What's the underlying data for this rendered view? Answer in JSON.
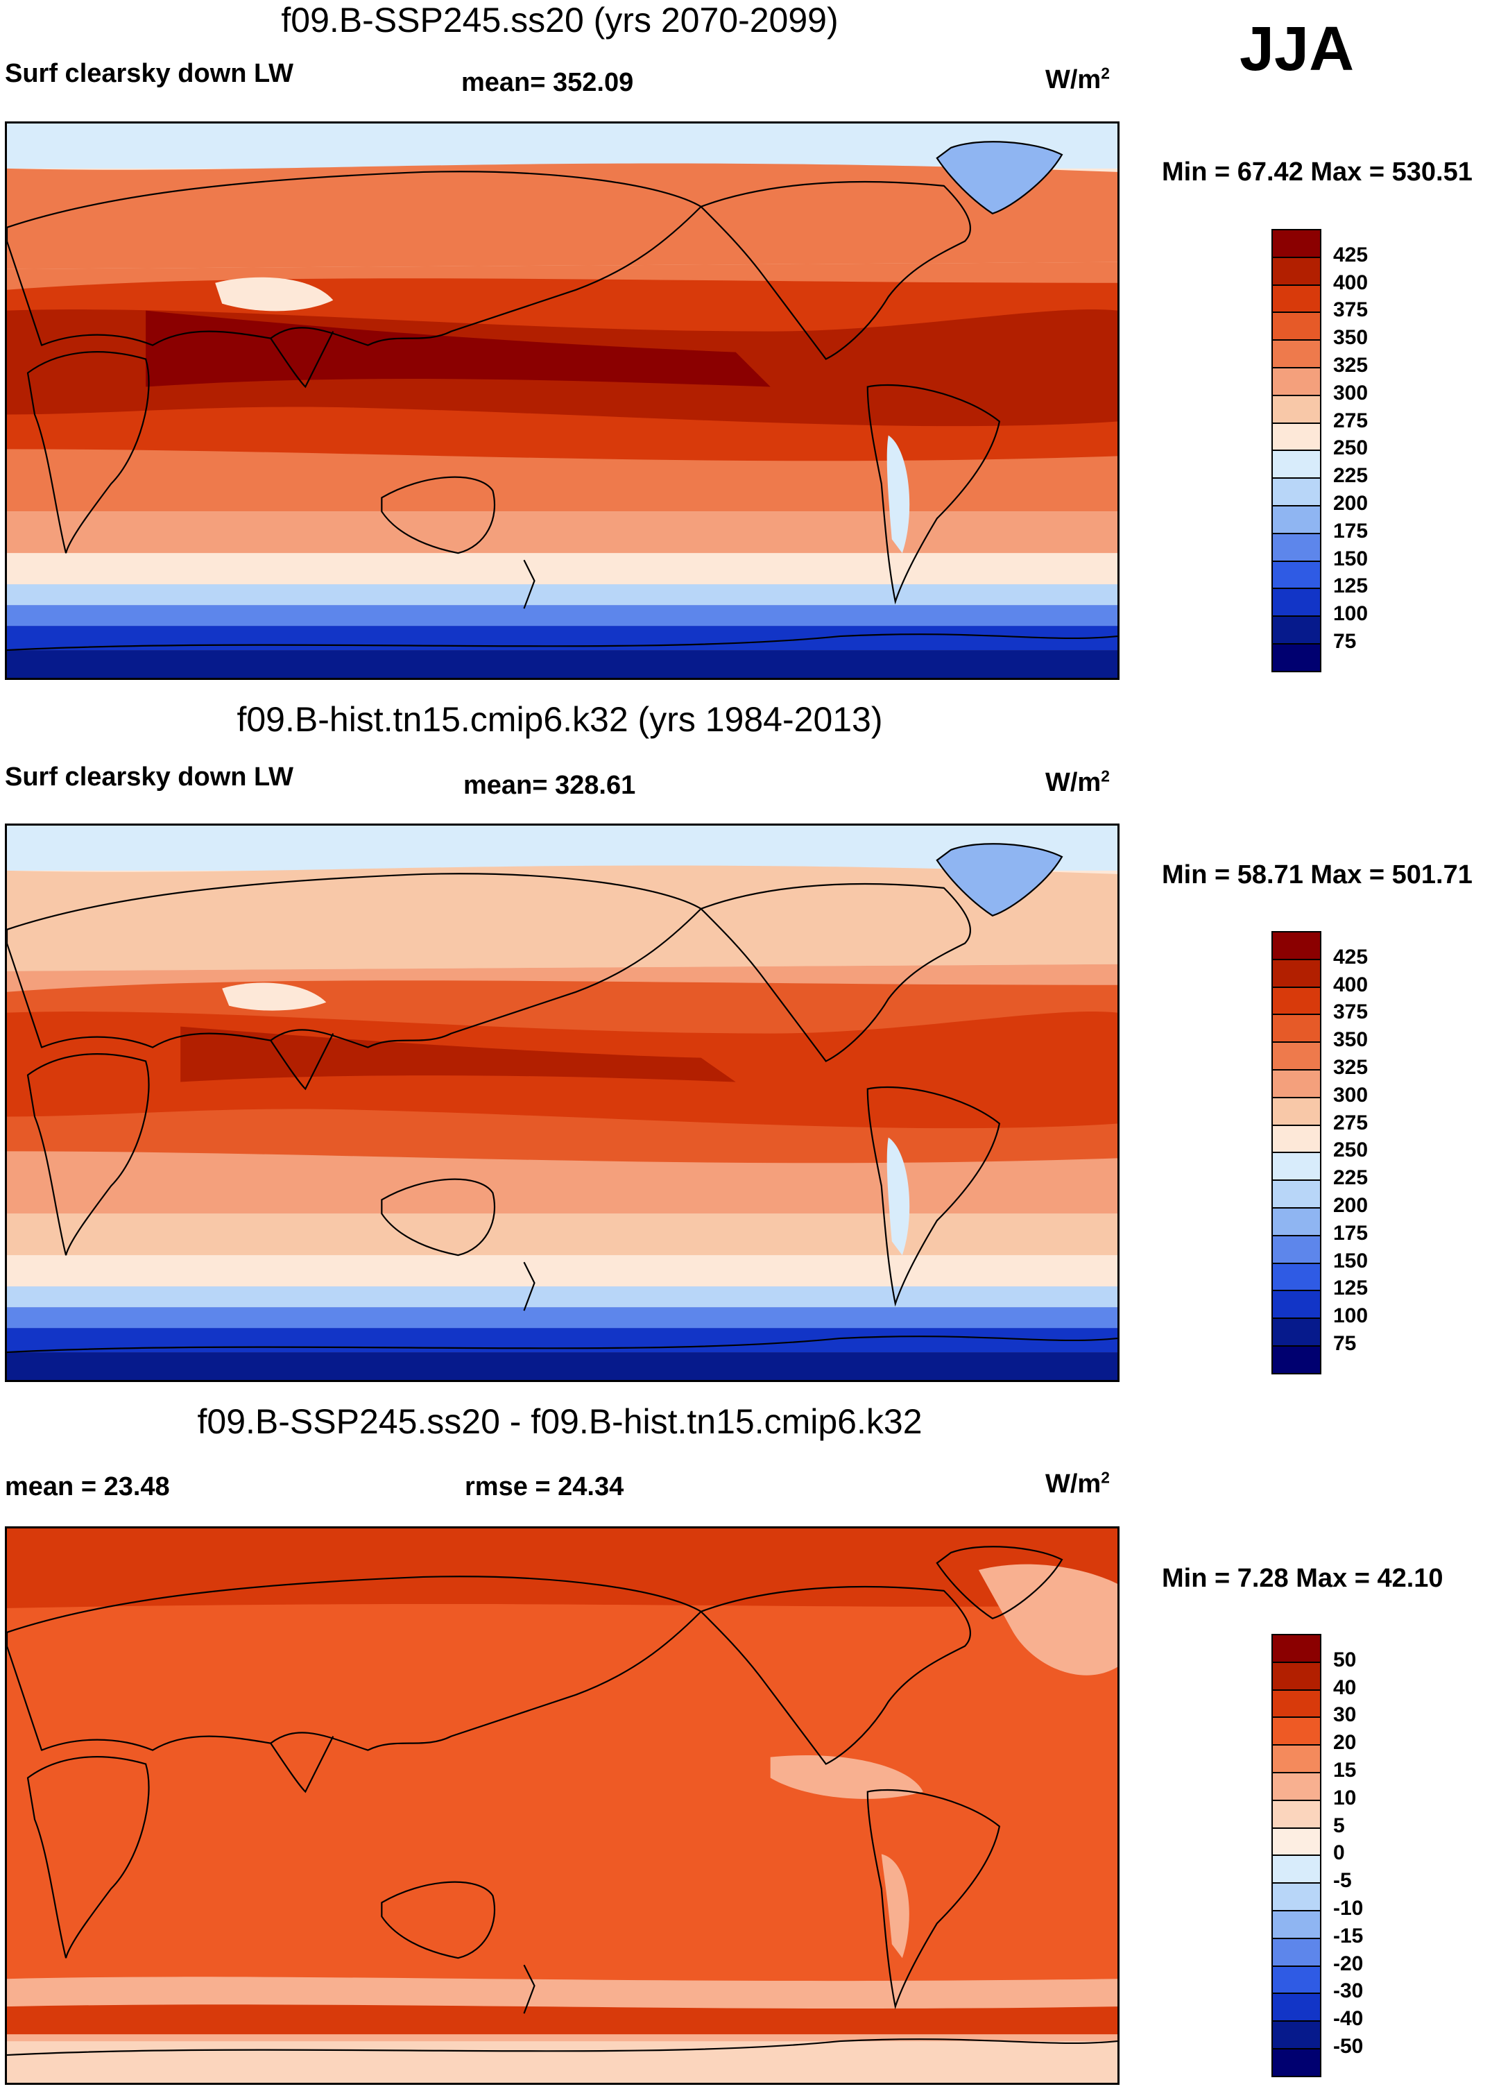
{
  "season": "JJA",
  "panels": [
    {
      "title": "f09.B-SSP245.ss20 (yrs 2070-2099)",
      "left_label": "Surf clearsky down LW",
      "center_label": "mean= 352.09",
      "units_base": "W/m",
      "units_exp": "2",
      "minmax": "Min =  67.42 Max = 530.51",
      "colorbar_labels": [
        "425",
        "400",
        "375",
        "350",
        "325",
        "300",
        "275",
        "250",
        "225",
        "200",
        "175",
        "150",
        "125",
        "100",
        "75"
      ],
      "colorbar_colors": [
        "#8b0000",
        "#b21f00",
        "#d83a0b",
        "#e65a28",
        "#ee7a4c",
        "#f4a07c",
        "#f8c8a8",
        "#fde8d8",
        "#d8ecfb",
        "#b8d6f8",
        "#8fb5f2",
        "#5d86eb",
        "#2f5be4",
        "#1235c7",
        "#061a8c",
        "#000070"
      ]
    },
    {
      "title": "f09.B-hist.tn15.cmip6.k32 (yrs 1984-2013)",
      "left_label": "Surf clearsky down LW",
      "center_label": "mean= 328.61",
      "units_base": "W/m",
      "units_exp": "2",
      "minmax": "Min =  58.71 Max = 501.71",
      "colorbar_labels": [
        "425",
        "400",
        "375",
        "350",
        "325",
        "300",
        "275",
        "250",
        "225",
        "200",
        "175",
        "150",
        "125",
        "100",
        "75"
      ],
      "colorbar_colors": [
        "#8b0000",
        "#b21f00",
        "#d83a0b",
        "#e65a28",
        "#ee7a4c",
        "#f4a07c",
        "#f8c8a8",
        "#fde8d8",
        "#d8ecfb",
        "#b8d6f8",
        "#8fb5f2",
        "#5d86eb",
        "#2f5be4",
        "#1235c7",
        "#061a8c",
        "#000070"
      ]
    },
    {
      "title": "f09.B-SSP245.ss20 - f09.B-hist.tn15.cmip6.k32",
      "left_label": "mean =  23.48",
      "center_label": "rmse =  24.34",
      "units_base": "W/m",
      "units_exp": "2",
      "minmax": "Min =   7.28 Max =  42.10",
      "colorbar_labels": [
        "50",
        "40",
        "30",
        "20",
        "15",
        "10",
        "5",
        "0",
        "-5",
        "-10",
        "-15",
        "-20",
        "-30",
        "-40",
        "-50"
      ],
      "colorbar_colors": [
        "#8b0000",
        "#b21f00",
        "#d83a0b",
        "#ee5a25",
        "#f48a5c",
        "#f8b090",
        "#fbd5bd",
        "#fdeee2",
        "#d8ecfb",
        "#b8d6f8",
        "#8fb5f2",
        "#5d86eb",
        "#2f5be4",
        "#1235c7",
        "#061a8c",
        "#000070"
      ]
    }
  ],
  "map_fills": {
    "p1": {
      "ocean_hot": "#8b0000",
      "ocean_warm": "#b21f00",
      "ocean_mid": "#d83a0b",
      "ocean_mild": "#ee7a4c",
      "ocean_cool": "#f4a07c",
      "ocean_pale": "#fde8d8",
      "polar_n": "#d8ecfb",
      "polar_s1": "#b8d6f8",
      "polar_s2": "#5d86eb",
      "polar_s3": "#1235c7",
      "polar_s4": "#061a8c",
      "greenland": "#8fb5f2",
      "tibet": "#fde8d8",
      "land": "#e65a28"
    },
    "p2": {
      "ocean_hot": "#b21f00",
      "ocean_warm": "#d83a0b",
      "ocean_mid": "#e65a28",
      "ocean_mild": "#f4a07c",
      "ocean_cool": "#f8c8a8",
      "ocean_pale": "#fde8d8",
      "polar_n": "#d8ecfb",
      "polar_s1": "#b8d6f8",
      "polar_s2": "#5d86eb",
      "polar_s3": "#1235c7",
      "polar_s4": "#061a8c",
      "greenland": "#8fb5f2",
      "tibet": "#fde8d8",
      "land": "#ee7a4c"
    },
    "p3": {
      "base": "#ee5a25",
      "north": "#d83a0b",
      "south": "#f8b090",
      "pale": "#fbd5bd",
      "land": "#e65a28"
    }
  }
}
